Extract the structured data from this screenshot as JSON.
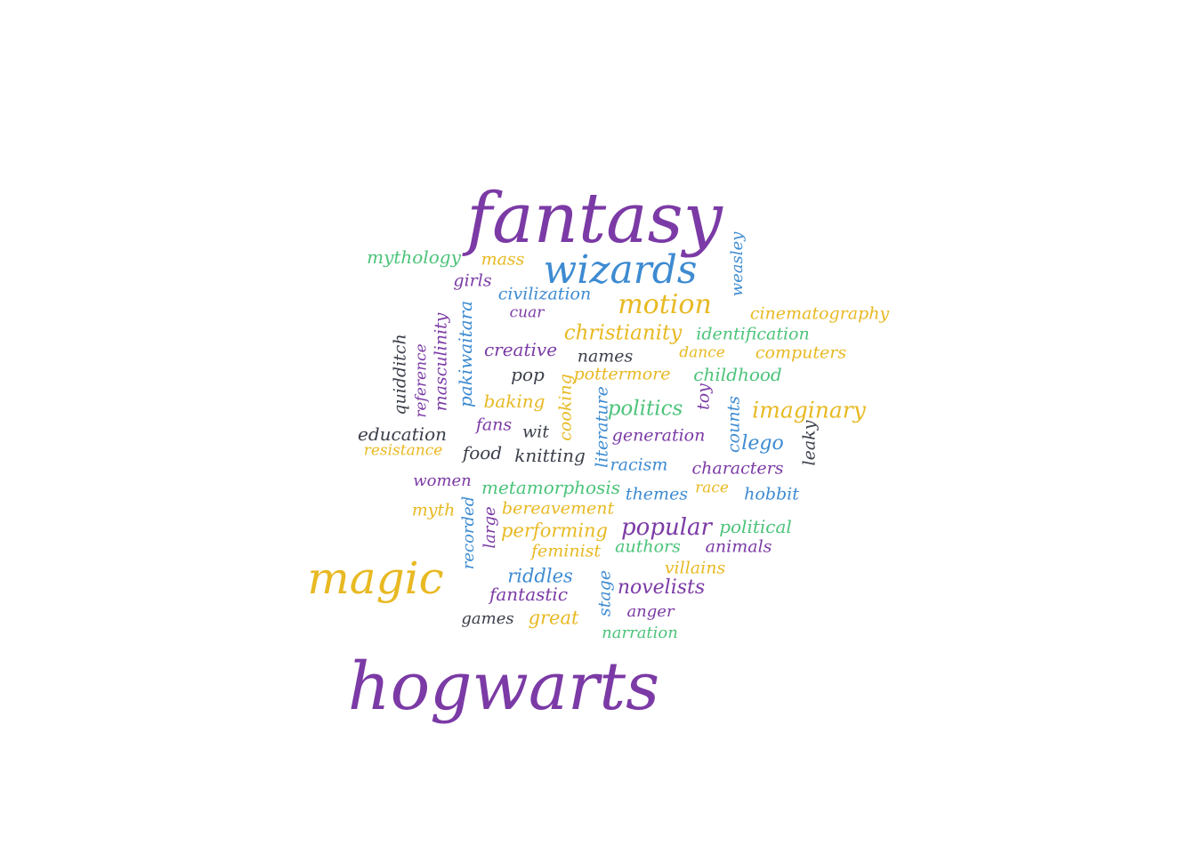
{
  "palette": {
    "purple": "#7b3aa5",
    "blue": "#3d8bd1",
    "gold": "#e8b923",
    "green": "#4cc37a",
    "dark": "#3b3f4a"
  },
  "words": [
    {
      "text": "fantasy",
      "color": "purple"
    },
    {
      "text": "wizards",
      "color": "blue"
    },
    {
      "text": "hogwarts",
      "color": "purple"
    },
    {
      "text": "magic",
      "color": "gold"
    },
    {
      "text": "motion",
      "color": "gold"
    },
    {
      "text": "mythology",
      "color": "green"
    },
    {
      "text": "mass",
      "color": "gold"
    },
    {
      "text": "girls",
      "color": "purple"
    },
    {
      "text": "civilization",
      "color": "blue"
    },
    {
      "text": "cuar",
      "color": "purple"
    },
    {
      "text": "weasley",
      "color": "blue"
    },
    {
      "text": "cinematography",
      "color": "gold"
    },
    {
      "text": "christianity",
      "color": "gold"
    },
    {
      "text": "identification",
      "color": "green"
    },
    {
      "text": "creative",
      "color": "purple"
    },
    {
      "text": "names",
      "color": "dark"
    },
    {
      "text": "dance",
      "color": "gold"
    },
    {
      "text": "computers",
      "color": "gold"
    },
    {
      "text": "quidditch",
      "color": "dark"
    },
    {
      "text": "reference",
      "color": "purple"
    },
    {
      "text": "masculinity",
      "color": "purple"
    },
    {
      "text": "pakiwaitara",
      "color": "blue"
    },
    {
      "text": "pop",
      "color": "dark"
    },
    {
      "text": "pottermore",
      "color": "gold"
    },
    {
      "text": "childhood",
      "color": "green"
    },
    {
      "text": "baking",
      "color": "gold"
    },
    {
      "text": "cooking",
      "color": "gold"
    },
    {
      "text": "toy",
      "color": "purple"
    },
    {
      "text": "politics",
      "color": "green"
    },
    {
      "text": "imaginary",
      "color": "gold"
    },
    {
      "text": "fans",
      "color": "purple"
    },
    {
      "text": "wit",
      "color": "dark"
    },
    {
      "text": "literature",
      "color": "blue"
    },
    {
      "text": "counts",
      "color": "blue"
    },
    {
      "text": "education",
      "color": "dark"
    },
    {
      "text": "generation",
      "color": "purple"
    },
    {
      "text": "lego",
      "color": "blue"
    },
    {
      "text": "leaky",
      "color": "dark"
    },
    {
      "text": "resistance",
      "color": "gold"
    },
    {
      "text": "food",
      "color": "dark"
    },
    {
      "text": "knitting",
      "color": "dark"
    },
    {
      "text": "racism",
      "color": "blue"
    },
    {
      "text": "characters",
      "color": "purple"
    },
    {
      "text": "women",
      "color": "purple"
    },
    {
      "text": "metamorphosis",
      "color": "green"
    },
    {
      "text": "themes",
      "color": "blue"
    },
    {
      "text": "race",
      "color": "gold"
    },
    {
      "text": "hobbit",
      "color": "blue"
    },
    {
      "text": "myth",
      "color": "gold"
    },
    {
      "text": "recorded",
      "color": "blue"
    },
    {
      "text": "bereavement",
      "color": "gold"
    },
    {
      "text": "large",
      "color": "purple"
    },
    {
      "text": "popular",
      "color": "purple"
    },
    {
      "text": "political",
      "color": "green"
    },
    {
      "text": "performing",
      "color": "gold"
    },
    {
      "text": "authors",
      "color": "green"
    },
    {
      "text": "animals",
      "color": "purple"
    },
    {
      "text": "feminist",
      "color": "gold"
    },
    {
      "text": "villains",
      "color": "gold"
    },
    {
      "text": "riddles",
      "color": "blue"
    },
    {
      "text": "stage",
      "color": "blue"
    },
    {
      "text": "novelists",
      "color": "purple"
    },
    {
      "text": "fantastic",
      "color": "purple"
    },
    {
      "text": "anger",
      "color": "purple"
    },
    {
      "text": "games",
      "color": "dark"
    },
    {
      "text": "great",
      "color": "gold"
    },
    {
      "text": "narration",
      "color": "green"
    }
  ]
}
